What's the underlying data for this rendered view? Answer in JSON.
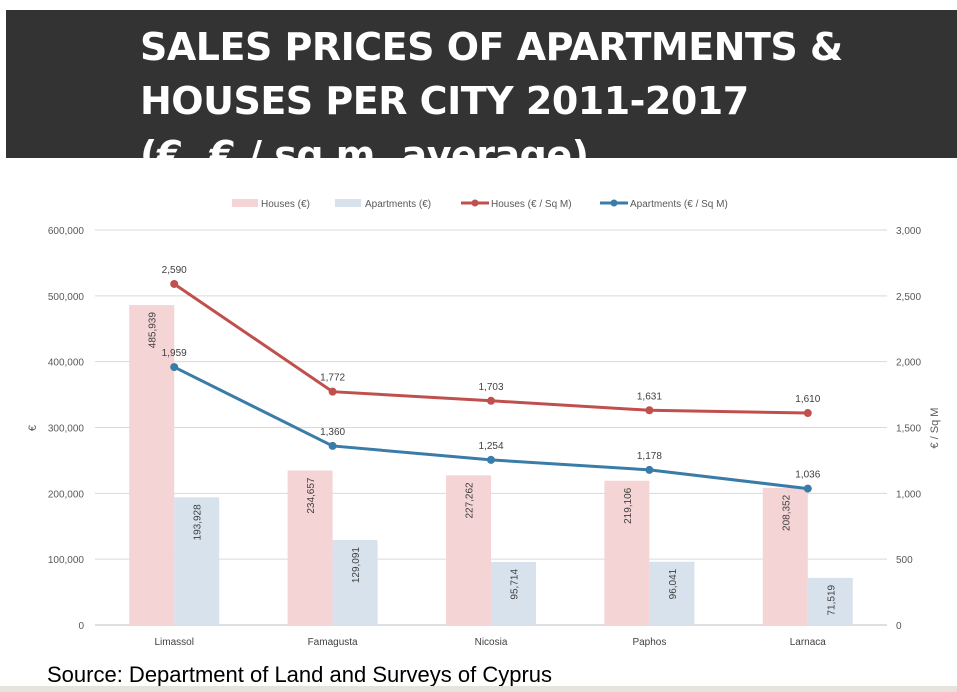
{
  "title": {
    "lines": [
      "SALES PRICES OF APARTMENTS &",
      "HOUSES PER CITY 2011-2017",
      "(€, € / sq m, average)"
    ]
  },
  "source": "Source: Department of Land and Surveys of Cyprus",
  "colors": {
    "title_bg": "#333333",
    "houses_bar": "#f4d4d4",
    "apartments_bar": "#d8e2ed",
    "houses_line": "#c0504d",
    "apartments_line": "#3a7ca8"
  },
  "chart_data": {
    "type": "bar",
    "categories": [
      "Limassol",
      "Famagusta",
      "Nicosia",
      "Paphos",
      "Larnaca"
    ],
    "series": [
      {
        "name": "Houses (€)",
        "kind": "bar",
        "axis": "left",
        "values": [
          485939,
          234657,
          227262,
          219106,
          208352
        ],
        "labels": [
          "485,939",
          "234,657",
          "227,262",
          "219,106",
          "208,352"
        ]
      },
      {
        "name": "Apartments (€)",
        "kind": "bar",
        "axis": "left",
        "values": [
          193928,
          129091,
          95714,
          96041,
          71519
        ],
        "labels": [
          "193,928",
          "129,091",
          "95,714",
          "96,041",
          "71,519"
        ]
      },
      {
        "name": "Houses (€ / Sq M)",
        "kind": "line",
        "axis": "right",
        "values": [
          2590,
          1772,
          1703,
          1631,
          1610
        ],
        "labels": [
          "2,590",
          "1,772",
          "1,703",
          "1,631",
          "1,610"
        ]
      },
      {
        "name": "Apartments (€ / Sq M)",
        "kind": "line",
        "axis": "right",
        "values": [
          1959,
          1360,
          1254,
          1178,
          1036
        ],
        "labels": [
          "1,959",
          "1,360",
          "1,254",
          "1,178",
          "1,036"
        ]
      }
    ],
    "ylabel": "€",
    "ylabel_right": "€ / Sq M",
    "ylim": [
      0,
      600000
    ],
    "ylim_right": [
      0,
      3000
    ],
    "yticks": [
      "0",
      "100,000",
      "200,000",
      "300,000",
      "400,000",
      "500,000",
      "600,000"
    ],
    "yticks_right": [
      "0",
      "500",
      "1,000",
      "1,500",
      "2,000",
      "2,500",
      "3,000"
    ],
    "grid": true,
    "legend_position": "top"
  }
}
